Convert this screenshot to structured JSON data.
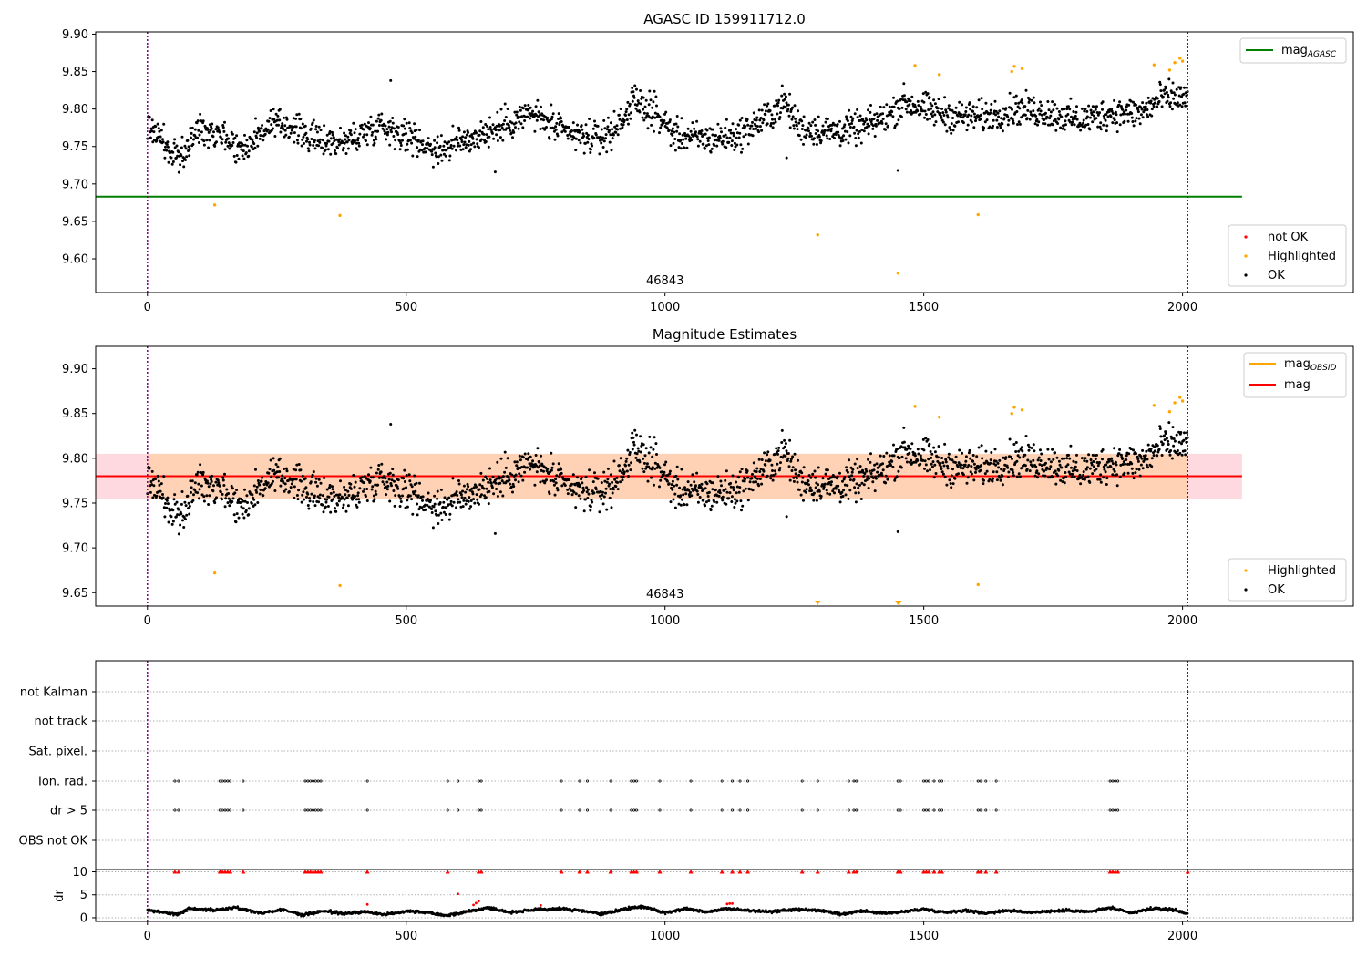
{
  "chart_data": [
    {
      "type": "scatter",
      "title": "AGASC ID 159911712.0",
      "xlim": [
        -100,
        2330
      ],
      "ylim": [
        9.555,
        9.903
      ],
      "xticks": [
        0,
        500,
        1000,
        1500,
        2000
      ],
      "yticks": [
        9.6,
        9.65,
        9.7,
        9.75,
        9.8,
        9.85,
        9.9
      ],
      "ytick_labels": [
        "9.60",
        "9.65",
        "9.70",
        "9.75",
        "9.80",
        "9.85",
        "9.90"
      ],
      "obsid_label": "46843",
      "obsid_label_x": 1000,
      "obsid_boundaries": [
        0,
        2010
      ],
      "mag_agasc": 9.683,
      "mag_agasc_xrange": [
        -100,
        2115
      ],
      "highlighted_points": [
        [
          130,
          9.672
        ],
        [
          372,
          9.658
        ],
        [
          1295,
          9.632
        ],
        [
          1450,
          9.581
        ],
        [
          1605,
          9.659
        ],
        [
          1483,
          9.858
        ],
        [
          1530,
          9.846
        ],
        [
          1670,
          9.85
        ],
        [
          1675,
          9.857
        ],
        [
          1690,
          9.854
        ],
        [
          1945,
          9.859
        ],
        [
          1975,
          9.852
        ],
        [
          1985,
          9.862
        ],
        [
          1995,
          9.868
        ],
        [
          2000,
          9.864
        ]
      ],
      "ok_series_segments": [
        [
          0,
          9.78
        ],
        [
          30,
          9.76
        ],
        [
          45,
          9.735
        ],
        [
          70,
          9.74
        ],
        [
          100,
          9.775
        ],
        [
          140,
          9.77
        ],
        [
          180,
          9.745
        ],
        [
          230,
          9.775
        ],
        [
          270,
          9.78
        ],
        [
          320,
          9.76
        ],
        [
          380,
          9.755
        ],
        [
          450,
          9.78
        ],
        [
          500,
          9.765
        ],
        [
          560,
          9.745
        ],
        [
          620,
          9.76
        ],
        [
          680,
          9.775
        ],
        [
          740,
          9.795
        ],
        [
          800,
          9.77
        ],
        [
          860,
          9.76
        ],
        [
          900,
          9.77
        ],
        [
          940,
          9.81
        ],
        [
          980,
          9.795
        ],
        [
          1020,
          9.765
        ],
        [
          1080,
          9.76
        ],
        [
          1140,
          9.765
        ],
        [
          1200,
          9.79
        ],
        [
          1230,
          9.81
        ],
        [
          1260,
          9.775
        ],
        [
          1320,
          9.77
        ],
        [
          1380,
          9.775
        ],
        [
          1430,
          9.79
        ],
        [
          1460,
          9.81
        ],
        [
          1500,
          9.8
        ],
        [
          1560,
          9.79
        ],
        [
          1620,
          9.79
        ],
        [
          1680,
          9.8
        ],
        [
          1740,
          9.795
        ],
        [
          1800,
          9.785
        ],
        [
          1860,
          9.795
        ],
        [
          1920,
          9.795
        ],
        [
          1960,
          9.815
        ],
        [
          2010,
          9.815
        ]
      ],
      "ok_spread": 0.018,
      "extra_ok_points": [
        [
          470,
          9.838
        ],
        [
          1450,
          9.718
        ],
        [
          672,
          9.716
        ],
        [
          1235,
          9.735
        ]
      ],
      "legend_line": {
        "label_main": "mag",
        "label_sub": "AGASC",
        "color": "#008000",
        "placement": "upper right"
      },
      "legend_points": {
        "entries": [
          {
            "label": "not OK",
            "color": "#ff0000"
          },
          {
            "label": "Highlighted",
            "color": "#ffa500"
          },
          {
            "label": "OK",
            "color": "#000000"
          }
        ],
        "placement": "lower right"
      }
    },
    {
      "type": "scatter",
      "title": "Magnitude Estimates",
      "xlim": [
        -100,
        2330
      ],
      "ylim": [
        9.635,
        9.925
      ],
      "xticks": [
        0,
        500,
        1000,
        1500,
        2000
      ],
      "yticks": [
        9.65,
        9.7,
        9.75,
        9.8,
        9.85,
        9.9
      ],
      "ytick_labels": [
        "9.65",
        "9.70",
        "9.75",
        "9.80",
        "9.85",
        "9.90"
      ],
      "obsid_label": "46843",
      "obsid_label_x": 1000,
      "obsid_boundaries": [
        0,
        2010
      ],
      "mag": 9.78,
      "mag_band": [
        9.755,
        9.805
      ],
      "mag_obsid_band": [
        9.755,
        9.805
      ],
      "band_xrange": [
        -100,
        2115
      ],
      "highlighted_points": [
        [
          130,
          9.672
        ],
        [
          372,
          9.658
        ],
        [
          1605,
          9.659
        ],
        [
          1483,
          9.858
        ],
        [
          1530,
          9.846
        ],
        [
          1670,
          9.85
        ],
        [
          1675,
          9.857
        ],
        [
          1690,
          9.854
        ],
        [
          1945,
          9.859
        ],
        [
          1975,
          9.852
        ],
        [
          1985,
          9.862
        ],
        [
          1995,
          9.868
        ],
        [
          2000,
          9.864
        ]
      ],
      "offscale_markers": [
        [
          1295,
          9.638
        ],
        [
          1450,
          9.638
        ],
        [
          1452,
          9.638
        ]
      ],
      "legend_line": {
        "entries": [
          {
            "label_main": "mag",
            "label_sub": "OBSID",
            "color": "#ffa500"
          },
          {
            "label_main": "mag",
            "label_sub": "",
            "color": "#ff0000"
          }
        ],
        "placement": "upper right"
      },
      "legend_points": {
        "entries": [
          {
            "label": "Highlighted",
            "color": "#ffa500"
          },
          {
            "label": "OK",
            "color": "#000000"
          }
        ],
        "placement": "lower right"
      }
    },
    {
      "type": "scatter",
      "title": "",
      "xlim": [
        -100,
        2330
      ],
      "xticks": [
        0,
        500,
        1000,
        1500,
        2000
      ],
      "flag_categories": [
        "not Kalman",
        "not track",
        "Sat. pixel.",
        "Ion. rad.",
        "dr > 5",
        "OBS not OK"
      ],
      "flag_x": [
        53,
        60,
        140,
        145,
        150,
        155,
        160,
        185,
        305,
        310,
        315,
        320,
        325,
        330,
        335,
        425,
        580,
        600,
        640,
        645,
        800,
        835,
        850,
        895,
        935,
        940,
        945,
        990,
        1050,
        1110,
        1130,
        1145,
        1160,
        1265,
        1295,
        1355,
        1365,
        1370,
        1450,
        1455,
        1500,
        1505,
        1510,
        1520,
        1530,
        1535,
        1605,
        1610,
        1620,
        1640,
        1860,
        1865,
        1870,
        1875
      ],
      "flag_rows": [
        "Ion. rad.",
        "dr > 5"
      ],
      "not_kalman_x": [
        2010
      ],
      "obsid_boundaries": [
        0,
        2010
      ],
      "dr_ylabel": "dr",
      "dr_yticks": [
        0,
        5,
        10
      ],
      "dr_ylim": [
        -0.8,
        10.5
      ],
      "dr_segments": [
        [
          0,
          1.6
        ],
        [
          30,
          1.2
        ],
        [
          60,
          0.8
        ],
        [
          80,
          2.0
        ],
        [
          130,
          1.7
        ],
        [
          170,
          2.2
        ],
        [
          220,
          1.0
        ],
        [
          260,
          1.8
        ],
        [
          300,
          0.6
        ],
        [
          340,
          1.5
        ],
        [
          380,
          0.9
        ],
        [
          420,
          1.3
        ],
        [
          460,
          0.7
        ],
        [
          500,
          1.5
        ],
        [
          540,
          1.2
        ],
        [
          580,
          0.5
        ],
        [
          620,
          1.4
        ],
        [
          660,
          2.2
        ],
        [
          700,
          1.2
        ],
        [
          760,
          1.8
        ],
        [
          800,
          2.0
        ],
        [
          840,
          1.5
        ],
        [
          880,
          0.8
        ],
        [
          920,
          1.9
        ],
        [
          960,
          2.4
        ],
        [
          1000,
          1.1
        ],
        [
          1040,
          2.0
        ],
        [
          1080,
          1.3
        ],
        [
          1120,
          2.0
        ],
        [
          1160,
          1.6
        ],
        [
          1200,
          1.3
        ],
        [
          1250,
          1.8
        ],
        [
          1300,
          1.6
        ],
        [
          1340,
          0.7
        ],
        [
          1380,
          1.5
        ],
        [
          1420,
          1.0
        ],
        [
          1460,
          1.3
        ],
        [
          1500,
          1.9
        ],
        [
          1540,
          1.2
        ],
        [
          1580,
          1.6
        ],
        [
          1620,
          1.0
        ],
        [
          1660,
          1.6
        ],
        [
          1700,
          1.2
        ],
        [
          1740,
          1.4
        ],
        [
          1780,
          1.6
        ],
        [
          1820,
          1.3
        ],
        [
          1860,
          2.2
        ],
        [
          1900,
          1.0
        ],
        [
          1940,
          2.0
        ],
        [
          1980,
          1.8
        ],
        [
          2010,
          0.9
        ]
      ],
      "dr_red_points": [
        [
          425,
          2.9
        ],
        [
          600,
          5.2
        ],
        [
          630,
          2.8
        ],
        [
          635,
          3.2
        ],
        [
          640,
          3.6
        ],
        [
          760,
          2.7
        ],
        [
          1120,
          3.0
        ],
        [
          1125,
          3.1
        ],
        [
          1130,
          3.1
        ]
      ],
      "dr_clipped_x": [
        53,
        60,
        140,
        145,
        150,
        155,
        160,
        185,
        305,
        310,
        315,
        320,
        325,
        330,
        335,
        425,
        580,
        640,
        645,
        800,
        835,
        850,
        895,
        935,
        940,
        945,
        990,
        1050,
        1110,
        1130,
        1145,
        1160,
        1265,
        1295,
        1355,
        1365,
        1370,
        1450,
        1455,
        1500,
        1505,
        1510,
        1520,
        1530,
        1535,
        1605,
        1610,
        1620,
        1640,
        1860,
        1865,
        1870,
        1875,
        2010
      ]
    }
  ],
  "colors": {
    "ok": "#000000",
    "highlighted": "#ffa500",
    "not_ok": "#ff0000",
    "agasc_line": "#008000",
    "mag_line": "#ff0000",
    "obsid_line": "#ffa500",
    "band_red": "#ffc0cb",
    "band_orange": "#ffd0b0",
    "boundary": "#800080"
  }
}
